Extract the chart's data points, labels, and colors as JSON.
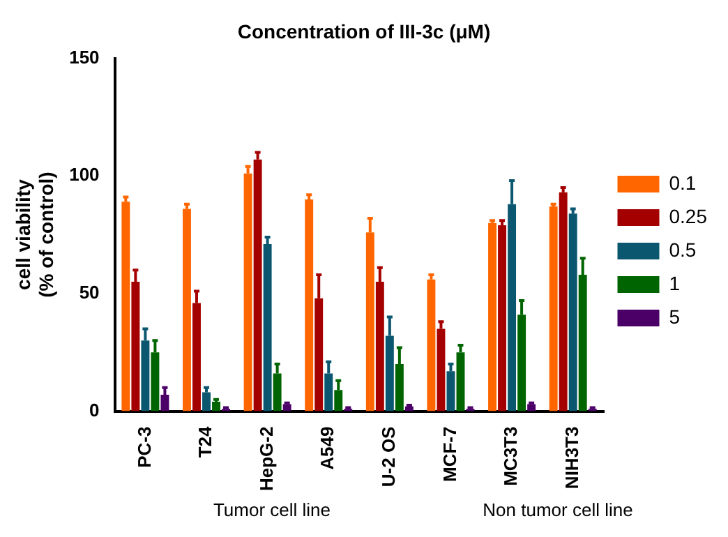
{
  "chart_data": {
    "type": "bar",
    "title": "Concentration of III-3c (μM)",
    "ylabel": "cell viability\n(% of control)",
    "categories": [
      "PC-3",
      "T24",
      "HepG-2",
      "A549",
      "U-2 OS",
      "MCF-7",
      "MC3T3",
      "NIH3T3"
    ],
    "series": [
      {
        "name": "0.1",
        "color": "#ff6600",
        "values": [
          89,
          86,
          101,
          90,
          76,
          56,
          80,
          87
        ],
        "errors": [
          2,
          2,
          3,
          2,
          6,
          2,
          1,
          1
        ]
      },
      {
        "name": "0.25",
        "color": "#a50000",
        "values": [
          55,
          46,
          107,
          48,
          55,
          35,
          79,
          93
        ],
        "errors": [
          5,
          5,
          3,
          10,
          6,
          3,
          2,
          2
        ]
      },
      {
        "name": "0.5",
        "color": "#0b5770",
        "values": [
          30,
          8,
          71,
          16,
          32,
          17,
          88,
          84
        ],
        "errors": [
          5,
          2,
          3,
          5,
          8,
          3,
          10,
          2
        ]
      },
      {
        "name": "1",
        "color": "#006400",
        "values": [
          25,
          4,
          16,
          9,
          20,
          25,
          41,
          58
        ],
        "errors": [
          5,
          1,
          4,
          4,
          7,
          3,
          6,
          7
        ]
      },
      {
        "name": "5",
        "color": "#4b0068",
        "values": [
          7,
          1,
          3,
          1,
          2,
          1,
          3,
          1
        ],
        "errors": [
          3,
          0.5,
          0.5,
          0.5,
          0.5,
          0.5,
          0.5,
          0.5
        ]
      }
    ],
    "ylim": [
      0,
      150
    ],
    "yticks": [
      0,
      50,
      100,
      150
    ],
    "grid": false,
    "legend": "right",
    "annotations": [
      "Tumor cell line",
      "Non tumor cell line"
    ]
  }
}
